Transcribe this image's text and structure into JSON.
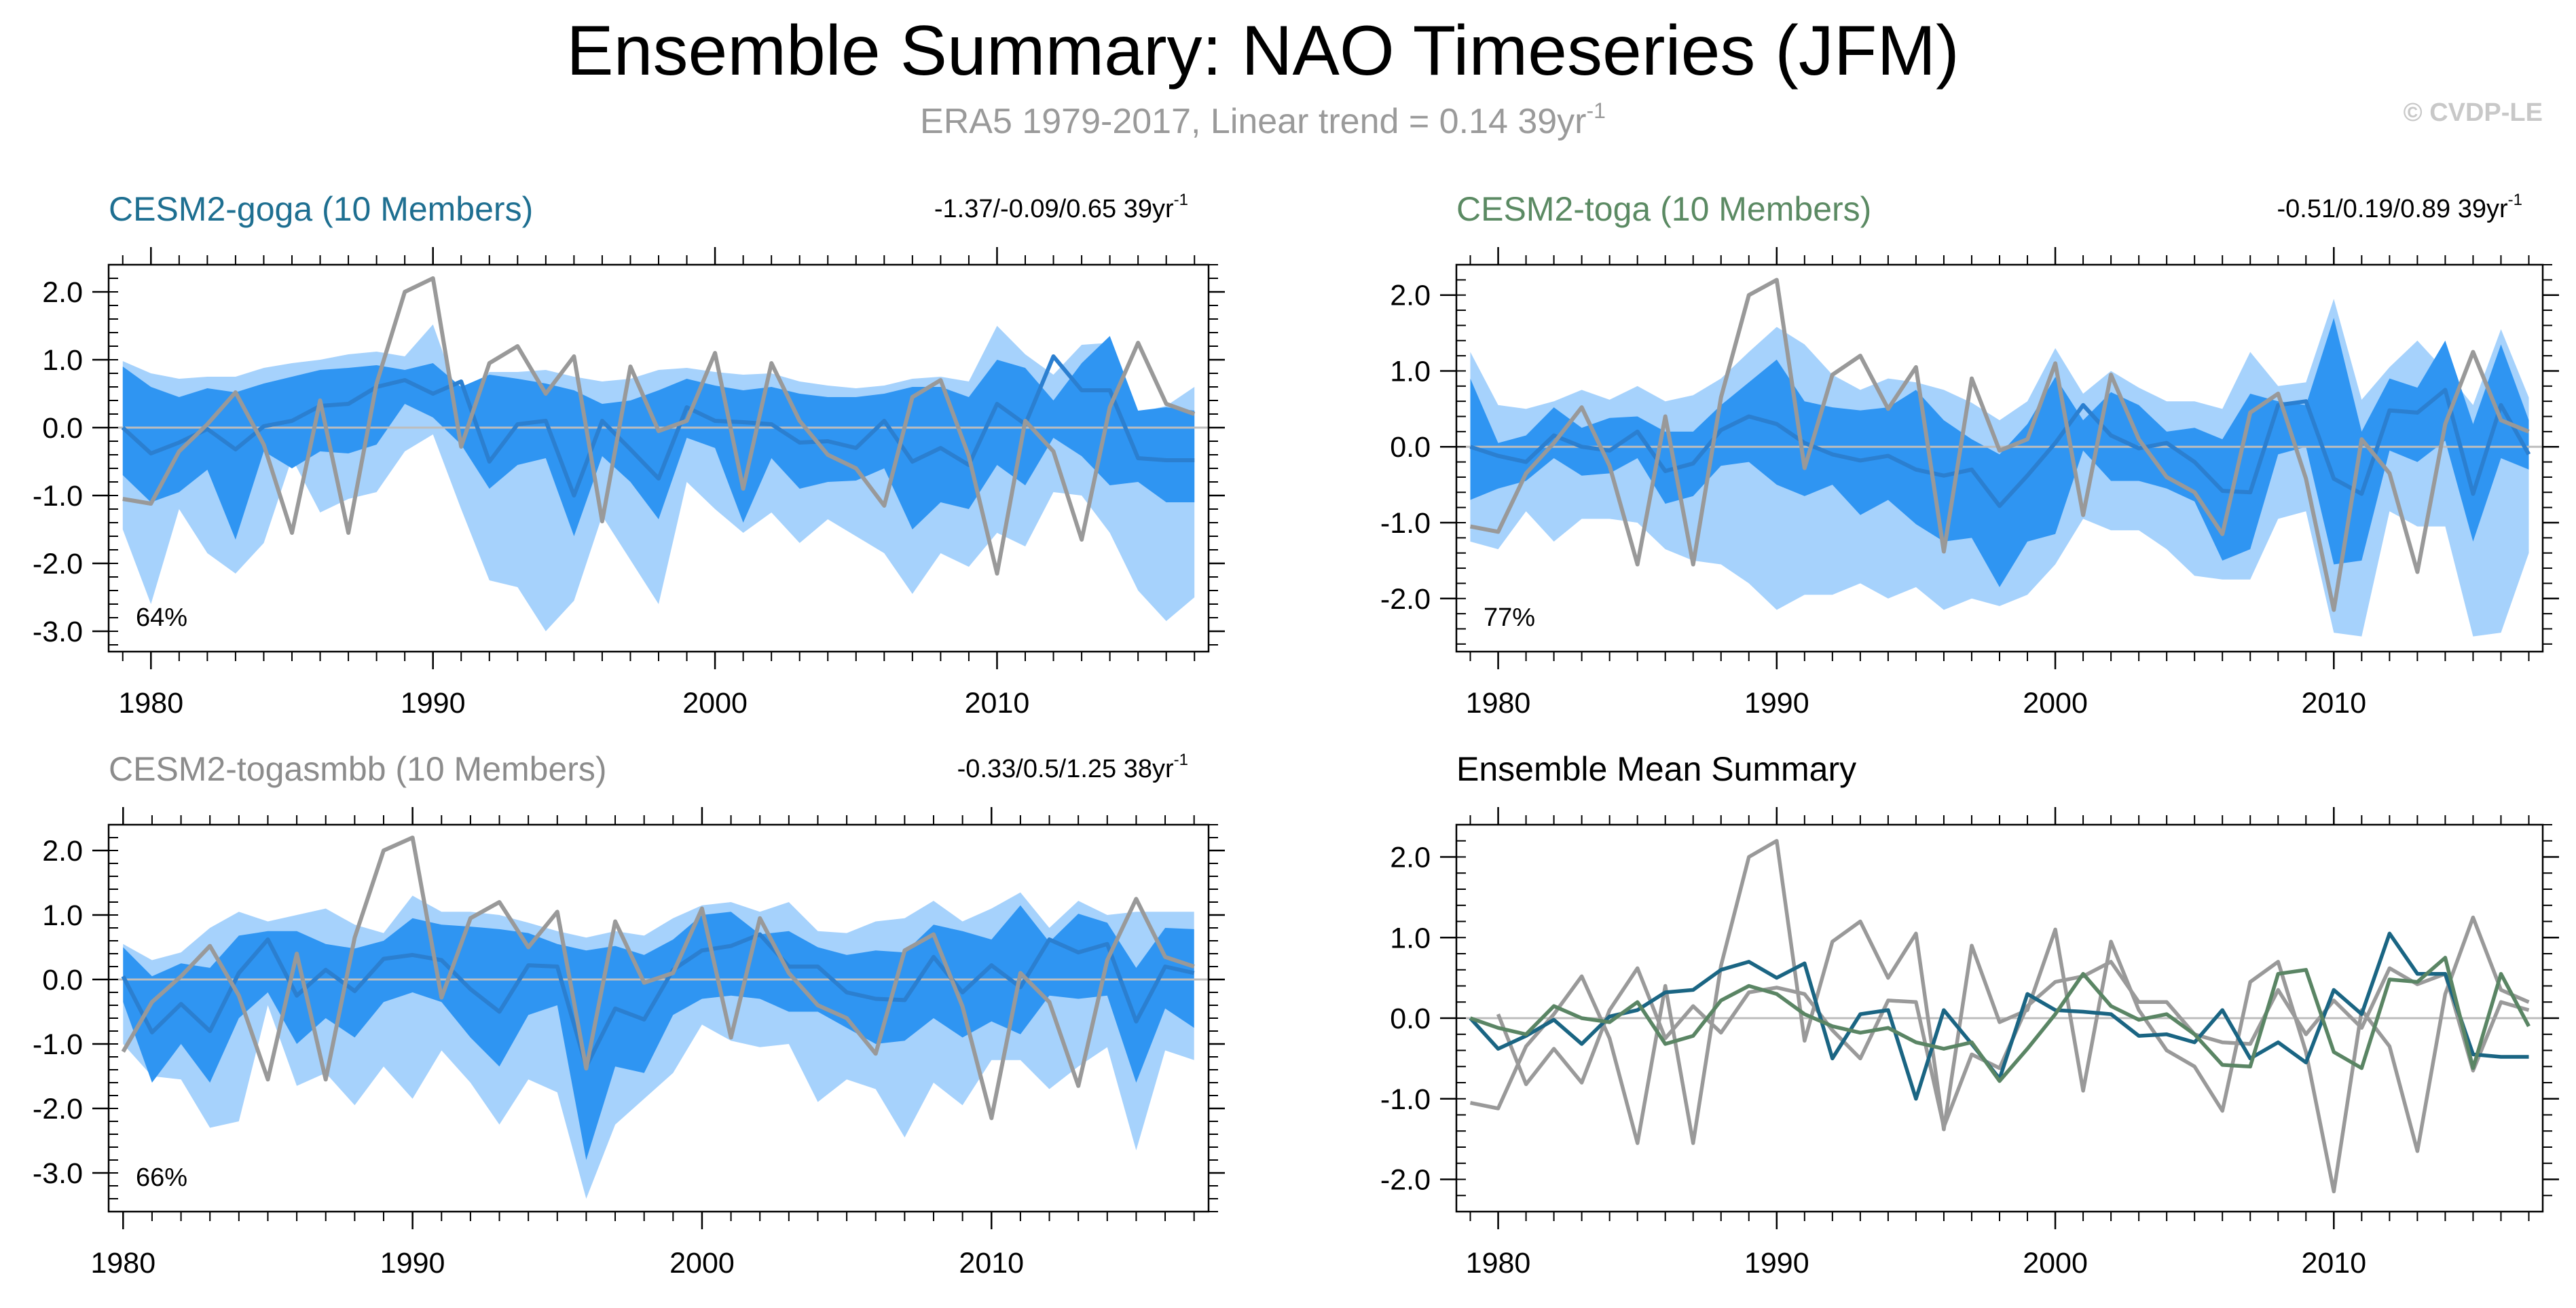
{
  "title": "Ensemble Summary: NAO Timeseries (JFM)",
  "subtitle": "ERA5 1979-2017, Linear trend = 0.14 39yr",
  "subtitle_sup": "-1",
  "credit": "© CVDP-LE",
  "colors": {
    "band_outer": "#a6d2fc",
    "band_inner": "#2f95f2",
    "ens_mean_line": "#2b7fd0",
    "obs_line": "#999999",
    "zero_line": "#bdbdbd",
    "goga_title": "#1e6f91",
    "toga_title": "#5b8a63",
    "togasmbb_title": "#8c8c8c",
    "goga_mean": "#1a6583",
    "toga_mean": "#5a8564",
    "togasmbb_mean": "#9a9a9a",
    "text": "#000000",
    "subtitle": "#9a9a9a",
    "credit": "#c8c8c8"
  },
  "chart_data": [
    {
      "type": "area",
      "title": "CESM2-goga (10 Members)",
      "trend_label": "-1.37/-0.09/0.65 39yr",
      "trend_sup": "-1",
      "percent_label": "64%",
      "ylim": [
        -3.3,
        2.4
      ],
      "yticks": [
        -3.0,
        -2.0,
        -1.0,
        0.0,
        1.0,
        2.0
      ],
      "ytick_labels": [
        "-3.0",
        "-2.0",
        "-1.0",
        "0.0",
        "1.0",
        "2.0"
      ],
      "xlim": [
        1978.5,
        2017.5
      ],
      "xticks": [
        1980,
        1990,
        2000,
        2010
      ],
      "x_start": 1979,
      "outer_upper": [
        0.98,
        0.8,
        0.72,
        0.75,
        0.75,
        0.88,
        0.95,
        1.0,
        1.08,
        1.12,
        1.05,
        1.52,
        0.35,
        0.82,
        0.82,
        0.85,
        0.75,
        0.68,
        0.72,
        0.85,
        0.88,
        0.82,
        0.78,
        0.8,
        0.68,
        0.62,
        0.58,
        0.62,
        0.72,
        0.75,
        0.68,
        1.5,
        1.08,
        0.78,
        1.22,
        1.25,
        0.22,
        0.32,
        0.6
      ],
      "inner_upper": [
        0.9,
        0.6,
        0.45,
        0.58,
        0.52,
        0.65,
        0.75,
        0.85,
        0.88,
        0.92,
        0.85,
        0.95,
        0.6,
        0.78,
        0.72,
        0.65,
        0.55,
        0.35,
        0.4,
        0.55,
        0.72,
        0.62,
        0.55,
        0.6,
        0.5,
        0.45,
        0.45,
        0.5,
        0.6,
        0.6,
        0.45,
        1.0,
        0.88,
        0.4,
        0.95,
        1.35,
        0.25,
        0.3,
        0.25
      ],
      "mean": [
        0.0,
        -0.38,
        -0.22,
        -0.02,
        -0.32,
        0.02,
        0.1,
        0.32,
        0.35,
        0.6,
        0.7,
        0.5,
        0.68,
        -0.5,
        0.05,
        0.1,
        -1.0,
        0.1,
        -0.32,
        -0.75,
        0.3,
        0.1,
        0.08,
        0.05,
        -0.22,
        -0.2,
        -0.3,
        0.1,
        -0.5,
        -0.3,
        -0.55,
        0.35,
        0.05,
        1.05,
        0.55,
        0.55,
        -0.45,
        -0.48,
        -0.48
      ],
      "inner_lower": [
        -0.7,
        -1.1,
        -0.95,
        -0.62,
        -1.65,
        -0.35,
        -0.6,
        -0.35,
        -0.38,
        -0.25,
        0.35,
        0.15,
        -0.25,
        -0.9,
        -0.55,
        -0.45,
        -1.6,
        -0.42,
        -0.8,
        -1.35,
        -0.15,
        -0.3,
        -1.4,
        -0.45,
        -0.9,
        -0.8,
        -0.78,
        -0.6,
        -1.5,
        -1.1,
        -1.2,
        -0.55,
        -0.85,
        -0.15,
        -0.42,
        -0.85,
        -0.8,
        -1.1,
        -1.1
      ],
      "outer_lower": [
        -1.5,
        -2.6,
        -1.2,
        -1.85,
        -2.15,
        -1.7,
        -0.45,
        -1.25,
        -1.05,
        -0.95,
        -0.35,
        -0.1,
        -1.2,
        -2.25,
        -2.35,
        -3.0,
        -2.55,
        -1.3,
        -1.95,
        -2.6,
        -0.8,
        -1.2,
        -1.55,
        -1.25,
        -1.7,
        -1.35,
        -1.6,
        -1.85,
        -2.45,
        -1.85,
        -2.05,
        -1.55,
        -1.75,
        -0.95,
        -1.0,
        -1.55,
        -2.4,
        -2.85,
        -2.5
      ],
      "obs": [
        -1.05,
        -1.12,
        -0.35,
        0.05,
        0.52,
        -0.25,
        -1.55,
        0.4,
        -1.55,
        0.65,
        2.0,
        2.2,
        -0.28,
        0.95,
        1.2,
        0.5,
        1.05,
        -1.38,
        0.9,
        -0.05,
        0.1,
        1.1,
        -0.9,
        0.95,
        0.1,
        -0.4,
        -0.6,
        -1.15,
        0.45,
        0.7,
        -0.42,
        -2.15,
        0.1,
        -0.35,
        -1.65,
        0.3,
        1.25,
        0.35,
        0.2
      ]
    },
    {
      "type": "area",
      "title": "CESM2-toga (10 Members)",
      "trend_label": "-0.51/0.19/0.89 39yr",
      "trend_sup": "-1",
      "percent_label": "77%",
      "ylim": [
        -2.7,
        2.4
      ],
      "yticks": [
        -2.0,
        -1.0,
        0.0,
        1.0,
        2.0
      ],
      "ytick_labels": [
        "-2.0",
        "-1.0",
        "0.0",
        "1.0",
        "2.0"
      ],
      "xlim": [
        1978.5,
        2017.5
      ],
      "xticks": [
        1980,
        1990,
        2000,
        2010
      ],
      "x_start": 1979,
      "outer_upper": [
        1.25,
        0.55,
        0.5,
        0.6,
        0.75,
        0.62,
        0.8,
        0.6,
        0.68,
        0.9,
        1.25,
        1.58,
        1.35,
        0.95,
        0.75,
        0.9,
        0.85,
        0.75,
        0.58,
        0.35,
        0.6,
        1.3,
        0.7,
        1.0,
        0.78,
        0.6,
        0.6,
        0.5,
        1.25,
        0.8,
        0.85,
        1.95,
        0.62,
        1.05,
        1.4,
        1.0,
        0.55,
        1.55,
        0.65
      ],
      "inner_upper": [
        0.9,
        0.05,
        0.15,
        0.52,
        0.25,
        0.38,
        0.4,
        0.2,
        0.2,
        0.55,
        0.85,
        1.15,
        0.6,
        0.52,
        0.48,
        0.52,
        0.75,
        0.35,
        0.1,
        -0.1,
        0.3,
        0.92,
        0.35,
        0.72,
        0.55,
        0.2,
        0.25,
        0.1,
        0.7,
        0.6,
        0.55,
        1.7,
        0.2,
        0.9,
        0.78,
        1.4,
        0.3,
        1.35,
        0.35
      ],
      "mean": [
        0.0,
        -0.12,
        -0.2,
        0.15,
        0.0,
        -0.05,
        0.2,
        -0.32,
        -0.22,
        0.22,
        0.4,
        0.3,
        0.05,
        -0.1,
        -0.18,
        -0.12,
        -0.3,
        -0.38,
        -0.3,
        -0.78,
        -0.38,
        0.05,
        0.55,
        0.15,
        -0.02,
        0.05,
        -0.2,
        -0.58,
        -0.6,
        0.55,
        0.6,
        -0.42,
        -0.62,
        0.48,
        0.45,
        0.75,
        -0.62,
        0.55,
        -0.1
      ],
      "inner_lower": [
        -0.7,
        -0.55,
        -0.45,
        -0.15,
        -0.38,
        -0.35,
        -0.15,
        -0.75,
        -0.65,
        -0.25,
        -0.2,
        -0.5,
        -0.65,
        -0.5,
        -0.9,
        -0.7,
        -1.02,
        -1.25,
        -1.2,
        -1.85,
        -1.25,
        -1.15,
        -0.05,
        -0.45,
        -0.45,
        -0.55,
        -0.72,
        -1.5,
        -1.35,
        -0.1,
        0.0,
        -1.55,
        -1.5,
        -0.05,
        -0.2,
        0.08,
        -1.25,
        -0.15,
        -0.3
      ],
      "outer_lower": [
        -1.25,
        -1.35,
        -0.85,
        -1.25,
        -0.95,
        -0.95,
        -1.0,
        -1.35,
        -1.5,
        -1.55,
        -1.8,
        -2.15,
        -1.95,
        -1.95,
        -1.8,
        -2.0,
        -1.85,
        -2.15,
        -2.0,
        -2.1,
        -1.95,
        -1.55,
        -0.95,
        -1.1,
        -1.1,
        -1.35,
        -1.7,
        -1.75,
        -1.75,
        -0.95,
        -0.85,
        -2.45,
        -2.5,
        -0.85,
        -1.05,
        -1.05,
        -2.5,
        -2.45,
        -1.4
      ],
      "obs": [
        -1.05,
        -1.12,
        -0.35,
        0.05,
        0.52,
        -0.25,
        -1.55,
        0.4,
        -1.55,
        0.65,
        2.0,
        2.2,
        -0.28,
        0.95,
        1.2,
        0.5,
        1.05,
        -1.38,
        0.9,
        -0.05,
        0.1,
        1.1,
        -0.9,
        0.95,
        0.1,
        -0.4,
        -0.6,
        -1.15,
        0.45,
        0.7,
        -0.42,
        -2.15,
        0.1,
        -0.35,
        -1.65,
        0.3,
        1.25,
        0.35,
        0.2
      ]
    },
    {
      "type": "area",
      "title": "CESM2-togasmbb (10 Members)",
      "trend_label": "-0.33/0.5/1.25 38yr",
      "trend_sup": "-1",
      "percent_label": "66%",
      "ylim": [
        -3.6,
        2.4
      ],
      "yticks": [
        -3.0,
        -2.0,
        -1.0,
        0.0,
        1.0,
        2.0
      ],
      "ytick_labels": [
        "-3.0",
        "-2.0",
        "-1.0",
        "0.0",
        "1.0",
        "2.0"
      ],
      "xlim": [
        1979.5,
        2017.5
      ],
      "xticks": [
        1980,
        1990,
        2000,
        2010
      ],
      "x_start": 1980,
      "outer_upper": [
        0.55,
        0.3,
        0.42,
        0.8,
        1.05,
        0.9,
        1.0,
        1.1,
        0.85,
        0.72,
        1.3,
        1.05,
        1.05,
        1.0,
        0.88,
        0.75,
        0.65,
        0.75,
        0.68,
        0.95,
        1.15,
        1.2,
        1.05,
        1.2,
        0.75,
        0.72,
        0.9,
        0.95,
        1.22,
        0.9,
        1.1,
        1.35,
        0.8,
        1.22,
        1.0,
        1.05,
        1.05,
        1.05
      ],
      "inner_upper": [
        0.5,
        0.05,
        0.25,
        0.18,
        0.68,
        0.75,
        0.75,
        0.55,
        0.48,
        0.6,
        0.95,
        0.85,
        0.82,
        0.78,
        0.72,
        0.55,
        0.45,
        0.52,
        0.38,
        0.62,
        1.0,
        1.05,
        0.7,
        0.75,
        0.5,
        0.38,
        0.45,
        0.42,
        0.85,
        0.75,
        0.62,
        1.15,
        0.58,
        1.02,
        0.88,
        0.18,
        0.8,
        0.78
      ],
      "mean": [
        0.05,
        -0.82,
        -0.38,
        -0.8,
        0.1,
        0.62,
        -0.25,
        0.15,
        -0.18,
        0.32,
        0.38,
        0.3,
        -0.15,
        -0.5,
        0.22,
        0.2,
        -1.35,
        -0.45,
        -0.62,
        0.15,
        0.45,
        0.52,
        0.7,
        0.2,
        0.2,
        -0.2,
        -0.3,
        -0.32,
        0.35,
        -0.2,
        0.22,
        -0.12,
        0.62,
        0.42,
        0.55,
        -0.65,
        0.2,
        0.1
      ],
      "inner_lower": [
        -0.35,
        -1.6,
        -1.0,
        -1.6,
        -0.6,
        -0.2,
        -1.0,
        -0.6,
        -0.9,
        -0.35,
        -0.2,
        -0.35,
        -0.9,
        -1.35,
        -0.55,
        -0.4,
        -2.8,
        -1.35,
        -1.45,
        -0.55,
        -0.3,
        -0.25,
        -0.3,
        -0.5,
        -0.5,
        -0.75,
        -1.0,
        -0.95,
        -0.6,
        -0.9,
        -0.65,
        -0.85,
        -0.25,
        -0.3,
        -0.25,
        -1.6,
        -0.45,
        -0.75
      ],
      "outer_lower": [
        -1.0,
        -1.5,
        -1.55,
        -2.3,
        -2.2,
        -0.4,
        -1.65,
        -1.45,
        -1.95,
        -1.35,
        -1.85,
        -1.1,
        -1.6,
        -2.25,
        -1.55,
        -1.75,
        -3.4,
        -2.25,
        -1.85,
        -1.45,
        -0.7,
        -0.95,
        -1.05,
        -1.0,
        -1.9,
        -1.55,
        -1.7,
        -2.45,
        -1.6,
        -1.95,
        -1.25,
        -1.25,
        -1.7,
        -1.35,
        -1.05,
        -2.65,
        -1.1,
        -1.25
      ],
      "obs": [
        -1.12,
        -0.35,
        0.05,
        0.52,
        -0.25,
        -1.55,
        0.4,
        -1.55,
        0.65,
        2.0,
        2.2,
        -0.28,
        0.95,
        1.2,
        0.5,
        1.05,
        -1.38,
        0.9,
        -0.05,
        0.1,
        1.1,
        -0.9,
        0.95,
        0.1,
        -0.4,
        -0.6,
        -1.15,
        0.45,
        0.7,
        -0.42,
        -2.15,
        0.1,
        -0.35,
        -1.65,
        0.3,
        1.25,
        0.35,
        0.2
      ]
    },
    {
      "type": "line",
      "title": "Ensemble Mean Summary",
      "ylim": [
        -2.4,
        2.4
      ],
      "yticks": [
        -2.0,
        -1.0,
        0.0,
        1.0,
        2.0
      ],
      "ytick_labels": [
        "-2.0",
        "-1.0",
        "0.0",
        "1.0",
        "2.0"
      ],
      "xlim": [
        1978.5,
        2017.5
      ],
      "xticks": [
        1980,
        1990,
        2000,
        2010
      ],
      "x": [
        1979,
        1980,
        1981,
        1982,
        1983,
        1984,
        1985,
        1986,
        1987,
        1988,
        1989,
        1990,
        1991,
        1992,
        1993,
        1994,
        1995,
        1996,
        1997,
        1998,
        1999,
        2000,
        2001,
        2002,
        2003,
        2004,
        2005,
        2006,
        2007,
        2008,
        2009,
        2010,
        2011,
        2012,
        2013,
        2014,
        2015,
        2016,
        2017
      ],
      "series": [
        {
          "name": "ERA5",
          "color_key": "obs_line",
          "values": [
            -1.05,
            -1.12,
            -0.35,
            0.05,
            0.52,
            -0.25,
            -1.55,
            0.4,
            -1.55,
            0.65,
            2.0,
            2.2,
            -0.28,
            0.95,
            1.2,
            0.5,
            1.05,
            -1.38,
            0.9,
            -0.05,
            0.1,
            1.1,
            -0.9,
            0.95,
            0.1,
            -0.4,
            -0.6,
            -1.15,
            0.45,
            0.7,
            -0.42,
            -2.15,
            0.1,
            -0.35,
            -1.65,
            0.3,
            1.25,
            0.35,
            0.2
          ]
        },
        {
          "name": "CESM2-togasmbb",
          "color_key": "togasmbb_mean",
          "values": [
            null,
            0.05,
            -0.82,
            -0.38,
            -0.8,
            0.1,
            0.62,
            -0.25,
            0.15,
            -0.18,
            0.32,
            0.38,
            0.3,
            -0.15,
            -0.5,
            0.22,
            0.2,
            -1.35,
            -0.45,
            -0.62,
            0.15,
            0.45,
            0.52,
            0.7,
            0.2,
            0.2,
            -0.2,
            -0.3,
            -0.32,
            0.35,
            -0.2,
            0.22,
            -0.12,
            0.62,
            0.42,
            0.55,
            -0.65,
            0.2,
            0.1
          ]
        },
        {
          "name": "CESM2-goga",
          "color_key": "goga_mean",
          "values": [
            0.0,
            -0.38,
            -0.22,
            -0.02,
            -0.32,
            0.02,
            0.1,
            0.32,
            0.35,
            0.6,
            0.7,
            0.5,
            0.68,
            -0.5,
            0.05,
            0.1,
            -1.0,
            0.1,
            -0.32,
            -0.75,
            0.3,
            0.1,
            0.08,
            0.05,
            -0.22,
            -0.2,
            -0.3,
            0.1,
            -0.5,
            -0.3,
            -0.55,
            0.35,
            0.05,
            1.05,
            0.55,
            0.55,
            -0.45,
            -0.48,
            -0.48
          ]
        },
        {
          "name": "CESM2-toga",
          "color_key": "toga_mean",
          "values": [
            0.0,
            -0.12,
            -0.2,
            0.15,
            0.0,
            -0.05,
            0.2,
            -0.32,
            -0.22,
            0.22,
            0.4,
            0.3,
            0.05,
            -0.1,
            -0.18,
            -0.12,
            -0.3,
            -0.38,
            -0.3,
            -0.78,
            -0.38,
            0.05,
            0.55,
            0.15,
            -0.02,
            0.05,
            -0.2,
            -0.58,
            -0.6,
            0.55,
            0.6,
            -0.42,
            -0.62,
            0.48,
            0.45,
            0.75,
            -0.62,
            0.55,
            -0.1
          ]
        }
      ]
    }
  ]
}
